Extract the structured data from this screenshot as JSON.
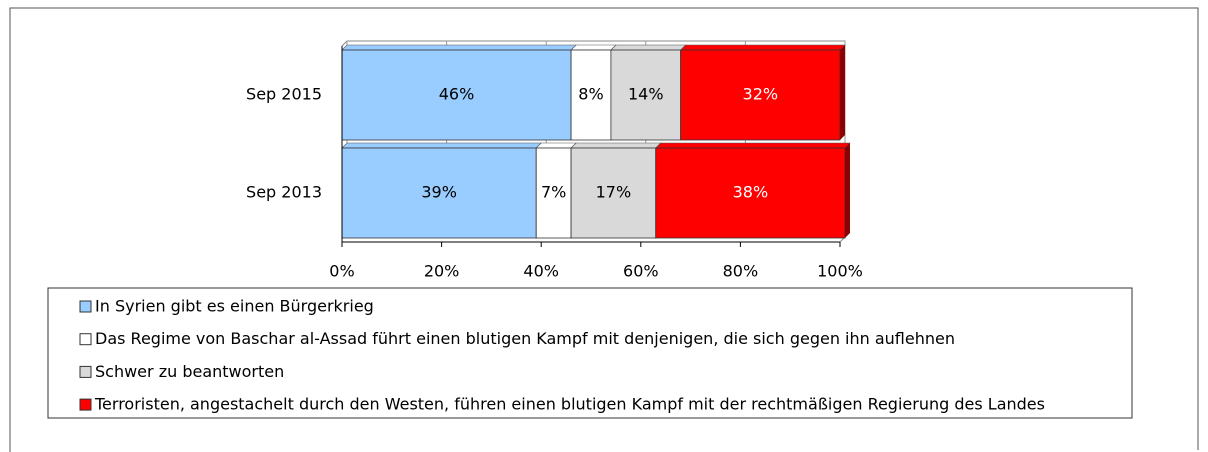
{
  "chart_data": {
    "type": "stacked-bar-horizontal",
    "categories": [
      "Sep 2015",
      "Sep 2013"
    ],
    "series": [
      {
        "name": "In Syrien gibt es einen Bürgerkrieg",
        "color": "#99ccff",
        "values": [
          46,
          39
        ],
        "value_labels": [
          "46%",
          "39%"
        ]
      },
      {
        "name": "Das Regime von Baschar al-Assad führt einen blutigen Kampf mit denjenigen, die sich gegen ihn auflehnen",
        "color": "#ffffff",
        "values": [
          8,
          7
        ],
        "value_labels": [
          "8%",
          "7%"
        ]
      },
      {
        "name": "Schwer zu beantworten",
        "color": "#d9d9d9",
        "values": [
          14,
          17
        ],
        "value_labels": [
          "14%",
          "17%"
        ]
      },
      {
        "name": "Terroristen, angestachelt durch den Westen, führen einen blutigen Kampf mit der rechtmäßigen Regierung des Landes",
        "color": "#ff0000",
        "values": [
          32,
          38
        ],
        "value_labels": [
          "32%",
          "38%"
        ]
      }
    ],
    "xlim": [
      0,
      100
    ],
    "xticks": [
      {
        "value": 0,
        "label": "0%"
      },
      {
        "value": 20,
        "label": "20%"
      },
      {
        "value": 40,
        "label": "40%"
      },
      {
        "value": 60,
        "label": "60%"
      },
      {
        "value": 80,
        "label": "80%"
      },
      {
        "value": 100,
        "label": "100%"
      }
    ],
    "grid": true,
    "legend": "bottom"
  }
}
